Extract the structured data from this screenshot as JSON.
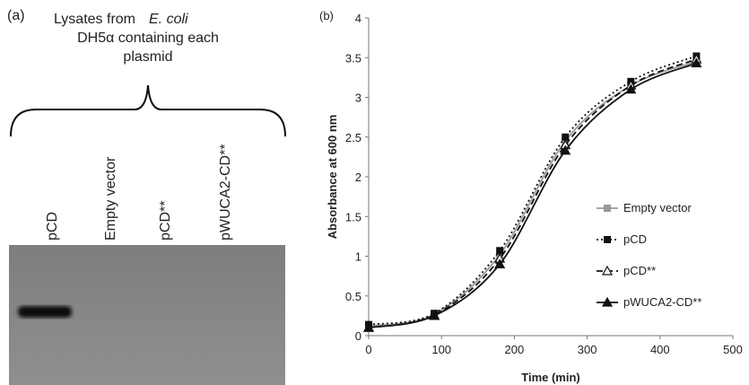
{
  "panel_a": {
    "label": "(a)",
    "title": {
      "prefix": "Lysates from",
      "italic": "E. coli",
      "line2": "DH5α containing each",
      "line3": "plasmid"
    },
    "lanes": [
      "pCD",
      "Empty vector",
      "pCD**",
      "pWUCA2-CD**"
    ]
  },
  "chart_data": {
    "type": "line",
    "label": "(b)",
    "x_label": "Time (min)",
    "y_label": "Absorbance at 600 nm",
    "x": [
      0,
      90,
      180,
      270,
      360,
      450
    ],
    "xlim": [
      0,
      500
    ],
    "xticks": [
      0,
      100,
      200,
      300,
      400,
      500
    ],
    "ylim": [
      0,
      4
    ],
    "yticks": [
      0,
      0.5,
      1,
      1.5,
      2,
      2.5,
      3,
      3.5,
      4
    ],
    "grid": false,
    "legend": "right",
    "series": [
      {
        "name": "Empty vector",
        "color": "#999999",
        "marker": "square",
        "dash": "solid",
        "values": [
          0.12,
          0.27,
          1.02,
          2.45,
          3.15,
          3.45
        ]
      },
      {
        "name": "pCD",
        "color": "#111111",
        "marker": "square",
        "dash": "dotted",
        "values": [
          0.14,
          0.28,
          1.07,
          2.5,
          3.2,
          3.52
        ]
      },
      {
        "name": "pCD**",
        "color": "#111111",
        "marker": "triangle-open",
        "dash": "dashed",
        "values": [
          0.1,
          0.26,
          0.97,
          2.4,
          3.15,
          3.48
        ]
      },
      {
        "name": "pWUCA2-CD**",
        "color": "#111111",
        "marker": "triangle",
        "dash": "solid",
        "values": [
          0.1,
          0.25,
          0.9,
          2.33,
          3.1,
          3.43
        ]
      }
    ]
  }
}
